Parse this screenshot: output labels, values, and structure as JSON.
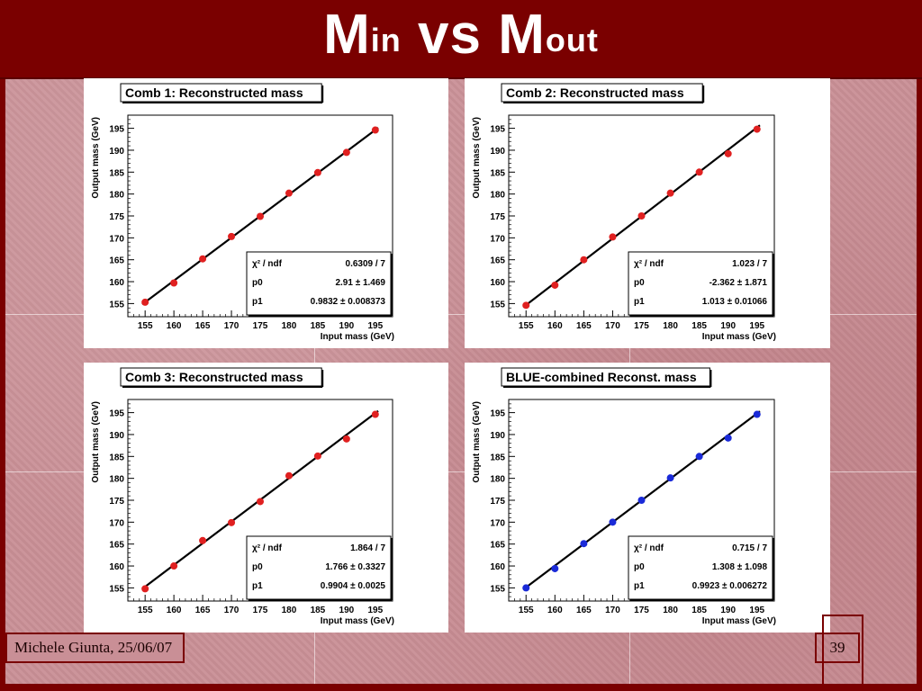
{
  "slide": {
    "title_m1": "M",
    "title_sup1": "in",
    "title_vs": " vs ",
    "title_m2": "M",
    "title_sup2": "out",
    "author": "Michele Giunta, 25/06/07",
    "page_number": "39",
    "colors": {
      "title_bar": "#7a0000",
      "background": "#c98f96"
    }
  },
  "chart_data": [
    {
      "type": "scatter",
      "title": "Comb 1: Reconstructed mass",
      "xlabel": "Input mass (GeV)",
      "ylabel": "Output mass (GeV)",
      "xlim": [
        152,
        198
      ],
      "ylim": [
        152,
        198
      ],
      "xticks": [
        155,
        160,
        165,
        170,
        175,
        180,
        185,
        190,
        195
      ],
      "yticks": [
        155,
        160,
        165,
        170,
        175,
        180,
        185,
        190,
        195
      ],
      "point_color": "#e02020",
      "x": [
        155,
        160,
        165,
        170,
        175,
        180,
        185,
        190,
        195
      ],
      "y": [
        155.3,
        159.7,
        165.2,
        170.3,
        174.9,
        180.2,
        184.9,
        189.5,
        194.6
      ],
      "fit": {
        "p0": 2.91,
        "p1": 0.9832
      },
      "stats": [
        {
          "label": "χ² / ndf",
          "value": "0.6309 / 7"
        },
        {
          "label": "p0",
          "value": "2.91 ± 1.469"
        },
        {
          "label": "p1",
          "value": "0.9832 ± 0.008373"
        }
      ]
    },
    {
      "type": "scatter",
      "title": "Comb 2: Reconstructed mass",
      "xlabel": "Input mass (GeV)",
      "ylabel": "Output mass (GeV)",
      "xlim": [
        152,
        198
      ],
      "ylim": [
        152,
        198
      ],
      "xticks": [
        155,
        160,
        165,
        170,
        175,
        180,
        185,
        190,
        195
      ],
      "yticks": [
        155,
        160,
        165,
        170,
        175,
        180,
        185,
        190,
        195
      ],
      "point_color": "#e02020",
      "x": [
        155,
        160,
        165,
        170,
        175,
        180,
        185,
        190,
        195
      ],
      "y": [
        154.6,
        159.2,
        165.0,
        170.2,
        175.0,
        180.2,
        185.0,
        189.2,
        194.8
      ],
      "fit": {
        "p0": -2.362,
        "p1": 1.013
      },
      "stats": [
        {
          "label": "χ² / ndf",
          "value": "1.023 / 7"
        },
        {
          "label": "p0",
          "value": "-2.362 ± 1.871"
        },
        {
          "label": "p1",
          "value": "1.013 ± 0.01066"
        }
      ]
    },
    {
      "type": "scatter",
      "title": "Comb 3: Reconstructed mass",
      "xlabel": "Input mass (GeV)",
      "ylabel": "Output mass (GeV)",
      "xlim": [
        152,
        198
      ],
      "ylim": [
        152,
        198
      ],
      "xticks": [
        155,
        160,
        165,
        170,
        175,
        180,
        185,
        190,
        195
      ],
      "yticks": [
        155,
        160,
        165,
        170,
        175,
        180,
        185,
        190,
        195
      ],
      "point_color": "#e02020",
      "x": [
        155,
        160,
        165,
        170,
        175,
        180,
        185,
        190,
        195
      ],
      "y": [
        154.8,
        160.0,
        165.8,
        169.9,
        174.7,
        180.6,
        185.1,
        189.0,
        194.6
      ],
      "fit": {
        "p0": 1.766,
        "p1": 0.9904
      },
      "stats": [
        {
          "label": "χ² / ndf",
          "value": "1.864 / 7"
        },
        {
          "label": "p0",
          "value": "1.766 ± 0.3327"
        },
        {
          "label": "p1",
          "value": "0.9904 ± 0.0025"
        }
      ]
    },
    {
      "type": "scatter",
      "title": "BLUE-combined Reconst. mass",
      "xlabel": "Input mass (GeV)",
      "ylabel": "Output mass (GeV)",
      "xlim": [
        152,
        198
      ],
      "ylim": [
        152,
        198
      ],
      "xticks": [
        155,
        160,
        165,
        170,
        175,
        180,
        185,
        190,
        195
      ],
      "yticks": [
        155,
        160,
        165,
        170,
        175,
        180,
        185,
        190,
        195
      ],
      "point_color": "#1a2ad8",
      "x": [
        155,
        160,
        165,
        170,
        175,
        180,
        185,
        190,
        195
      ],
      "y": [
        155.0,
        159.4,
        165.1,
        170.0,
        175.0,
        180.1,
        185.0,
        189.2,
        194.6
      ],
      "fit": {
        "p0": 1.308,
        "p1": 0.9923
      },
      "stats": [
        {
          "label": "χ² / ndf",
          "value": "0.715 / 7"
        },
        {
          "label": "p0",
          "value": "1.308 ± 1.098"
        },
        {
          "label": "p1",
          "value": "0.9923 ± 0.006272"
        }
      ]
    }
  ]
}
